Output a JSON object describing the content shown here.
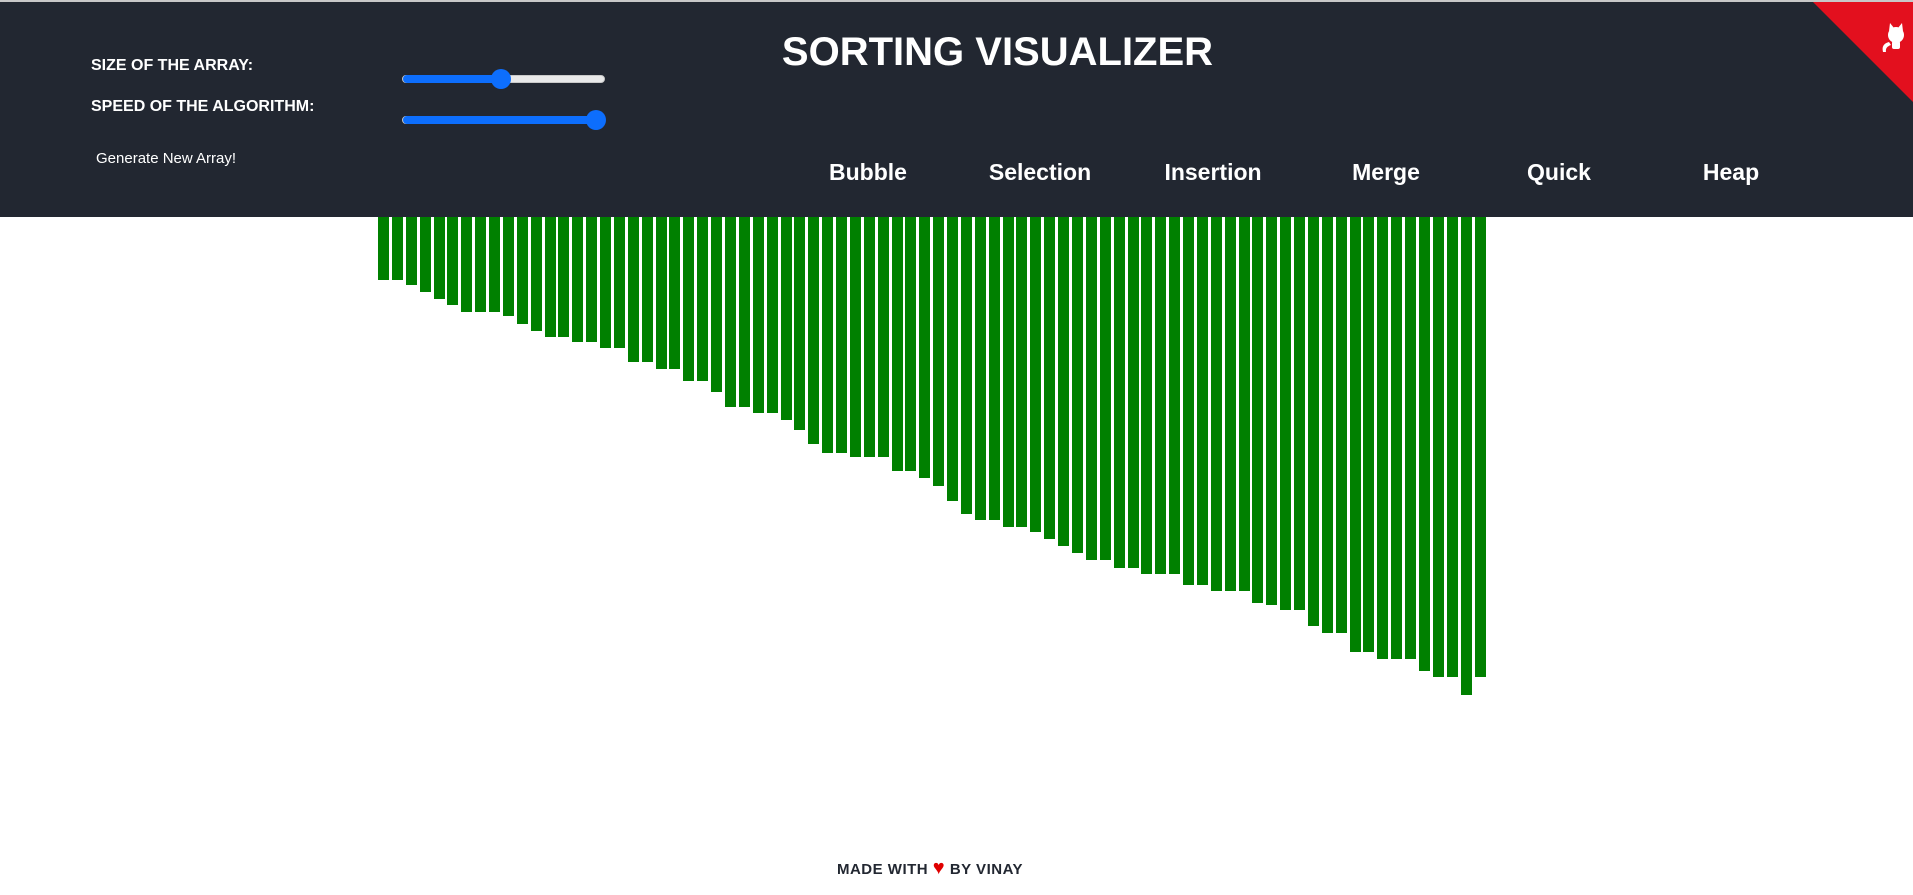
{
  "header": {
    "title": "SORTING VISUALIZER",
    "size_label": "SIZE OF THE ARRAY:",
    "speed_label": "SPEED OF THE ALGORITHM:",
    "generate_label": "Generate New Array!",
    "size_slider_level": 0.49,
    "speed_slider_level": 0.96,
    "algorithms": [
      "Bubble",
      "Selection",
      "Insertion",
      "Merge",
      "Quick",
      "Heap"
    ],
    "corner_icon": "github-octocat-icon",
    "corner_color": "#e3101e",
    "background_color": "#222731",
    "accent_color": "#0d6efd"
  },
  "array": {
    "bar_color": "#008000",
    "values": [
      63,
      63,
      68,
      75,
      82,
      88,
      95,
      95,
      95,
      99,
      107,
      114,
      120,
      120,
      125,
      125,
      131,
      131,
      145,
      145,
      152,
      152,
      164,
      164,
      175,
      190,
      190,
      196,
      196,
      203,
      213,
      227,
      236,
      236,
      240,
      240,
      240,
      254,
      254,
      261,
      269,
      284,
      297,
      303,
      303,
      310,
      310,
      315,
      322,
      329,
      336,
      343,
      343,
      351,
      351,
      357,
      357,
      357,
      368,
      368,
      374,
      374,
      374,
      386,
      388,
      393,
      393,
      409,
      416,
      416,
      435,
      435,
      442,
      442,
      442,
      454,
      460,
      460,
      478,
      460
    ]
  },
  "footer": {
    "made_with": "MADE WITH",
    "heart": "♥",
    "by": "BY VINAY"
  }
}
